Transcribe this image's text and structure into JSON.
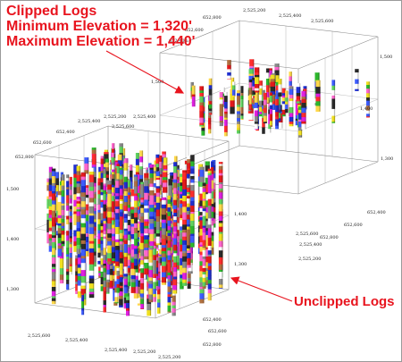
{
  "annotations": {
    "clipped_title": "Clipped Logs",
    "min_elevation": "Minimum Elevation = 1,320'",
    "max_elevation": "Maximum Elevation = 1,440'",
    "unclipped_title": "Unclipped Logs"
  },
  "colors": {
    "annotation": "#e8141e",
    "grid": "#8a8a8a",
    "log_palette": [
      "#e31a1c",
      "#ff2d2d",
      "#f0e020",
      "#ffd84a",
      "#2db82d",
      "#5fd35f",
      "#1f2fd0",
      "#3d5cff",
      "#e020e0",
      "#ff66cc",
      "#b07040",
      "#8a8a8a",
      "#ffffff",
      "#2a2a2a"
    ]
  },
  "axis_labels": {
    "clipped_box": {
      "elevation": [
        "1,500",
        "1,400",
        "1,300"
      ],
      "easting_top": [
        "2,525,200",
        "2,525,400",
        "2,525,600"
      ],
      "northing_top": [
        "652,800",
        "652,600",
        "652,400"
      ],
      "northing_right": [
        "652,800",
        "652,600",
        "652,400"
      ],
      "easting_bottom": [
        "2,525,200",
        "2,525,400",
        "2,525,600"
      ]
    },
    "unclipped_box": {
      "elevation": [
        "1,500",
        "1,400",
        "1,300"
      ],
      "easting_top": [
        "2,525,400",
        "2,525,600"
      ],
      "northing_top": [
        "652,800",
        "652,600",
        "652,400"
      ],
      "northing_right": [
        "652,800",
        "652,600",
        "652,400"
      ],
      "easting_bottom": [
        "2,525,200",
        "2,525,400",
        "2,525,600"
      ]
    }
  }
}
